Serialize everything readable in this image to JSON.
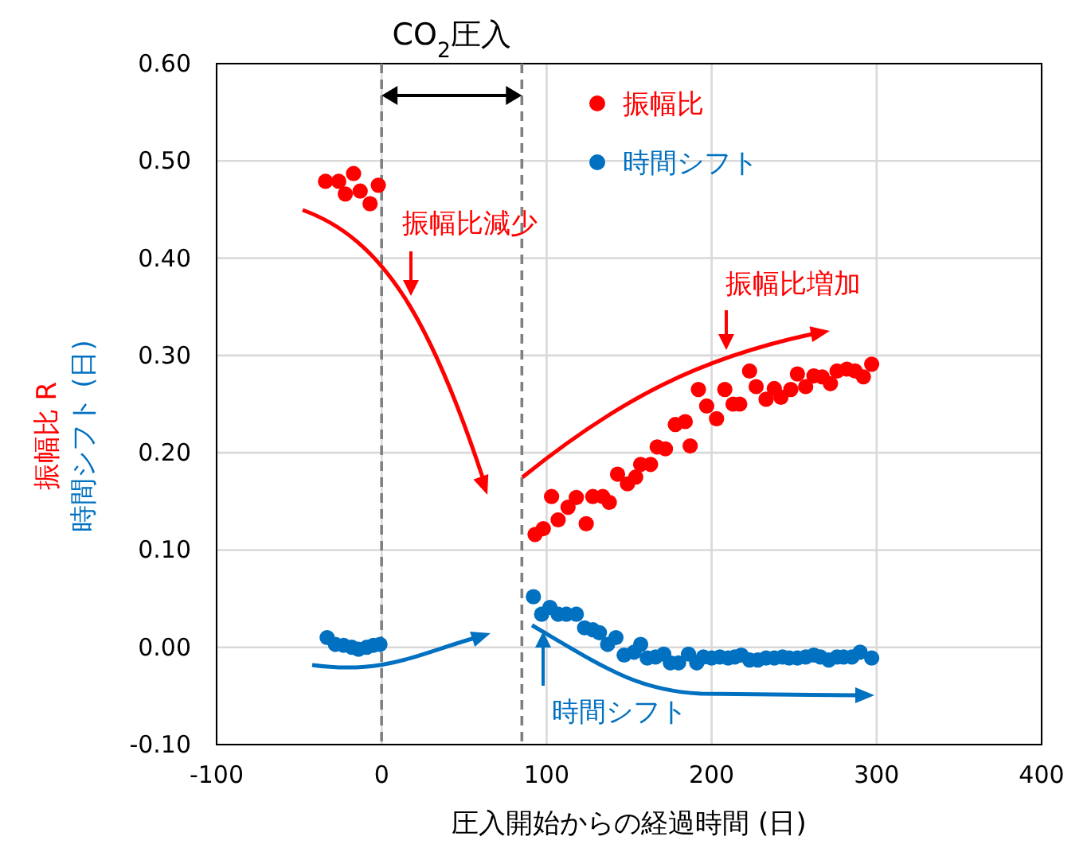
{
  "chart_data": {
    "type": "scatter",
    "xlabel": "圧入開始からの経過時間 (日)",
    "ylabel": "振幅比 R\n時間シフト (日)",
    "xlim": [
      -100,
      400
    ],
    "xticks": [
      -100,
      0,
      100,
      200,
      300,
      400
    ],
    "ylim": [
      -0.1,
      0.6
    ],
    "yticks": [
      {
        "value": -0.1,
        "label": "-0.10"
      },
      {
        "value": 0,
        "label": "0.00"
      },
      {
        "value": 0.1,
        "label": "0.10"
      },
      {
        "value": 0.2,
        "label": "0.20"
      },
      {
        "value": 0.3,
        "label": "0.30"
      },
      {
        "value": 0.4,
        "label": "0.40"
      },
      {
        "value": 0.5,
        "label": "0.50"
      },
      {
        "value": 0.6,
        "label": "0.60"
      }
    ],
    "grid": true,
    "legend": "top",
    "marker": "circle",
    "ref_lines": [
      {
        "axis": "x",
        "value": 0,
        "color": "#808080",
        "line_style": "dashed"
      },
      {
        "axis": "x",
        "value": 85,
        "color": "#808080",
        "line_style": "dashed"
      }
    ],
    "annotations": [
      "振幅比減少",
      "振幅比増加",
      "時間シフト",
      "CO$_{2}$圧入"
    ],
    "series": [
      {
        "name": "振幅比",
        "color": "#ff0000",
        "x": [
          -34,
          -26,
          -17,
          -22,
          -13,
          -7,
          -2,
          93,
          98,
          103,
          107,
          113,
          118,
          124,
          128,
          134,
          138,
          143,
          149,
          154,
          157,
          163,
          167,
          172,
          178,
          184,
          187,
          192,
          197,
          203,
          208,
          213,
          217,
          223,
          227,
          233,
          238,
          242,
          248,
          252,
          257,
          262,
          267,
          272,
          276,
          282,
          287,
          292,
          297
        ],
        "values": [
          0.479,
          0.479,
          0.487,
          0.466,
          0.469,
          0.456,
          0.475,
          0.116,
          0.122,
          0.155,
          0.131,
          0.144,
          0.154,
          0.127,
          0.155,
          0.155,
          0.149,
          0.178,
          0.168,
          0.175,
          0.188,
          0.188,
          0.206,
          0.204,
          0.229,
          0.232,
          0.207,
          0.265,
          0.248,
          0.235,
          0.265,
          0.25,
          0.25,
          0.284,
          0.268,
          0.255,
          0.266,
          0.257,
          0.265,
          0.281,
          0.268,
          0.279,
          0.278,
          0.271,
          0.284,
          0.286,
          0.284,
          0.278,
          0.291
        ]
      },
      {
        "name": "時間シフト",
        "color": "#0070c0",
        "x": [
          -33,
          -28,
          -23,
          -18,
          -14,
          -9,
          -5,
          -1,
          92,
          97,
          102,
          107,
          112,
          118,
          123,
          128,
          132,
          137,
          142,
          147,
          153,
          157,
          161,
          166,
          171,
          175,
          180,
          186,
          191,
          195,
          200,
          205,
          210,
          214,
          218,
          223,
          228,
          233,
          238,
          243,
          247,
          252,
          257,
          262,
          266,
          271,
          276,
          280,
          285,
          290,
          297
        ],
        "values": [
          0.01,
          0.003,
          0.002,
          0,
          -0.002,
          0,
          0.002,
          0.003,
          0.052,
          0.034,
          0.041,
          0.034,
          0.034,
          0.034,
          0.02,
          0.018,
          0.015,
          0.003,
          0.01,
          -0.008,
          -0.005,
          0.003,
          -0.011,
          -0.01,
          -0.007,
          -0.016,
          -0.016,
          -0.007,
          -0.016,
          -0.01,
          -0.011,
          -0.01,
          -0.011,
          -0.01,
          -0.008,
          -0.013,
          -0.013,
          -0.011,
          -0.011,
          -0.01,
          -0.011,
          -0.011,
          -0.01,
          -0.008,
          -0.01,
          -0.013,
          -0.01,
          -0.01,
          -0.01,
          -0.005,
          -0.011
        ]
      }
    ]
  }
}
